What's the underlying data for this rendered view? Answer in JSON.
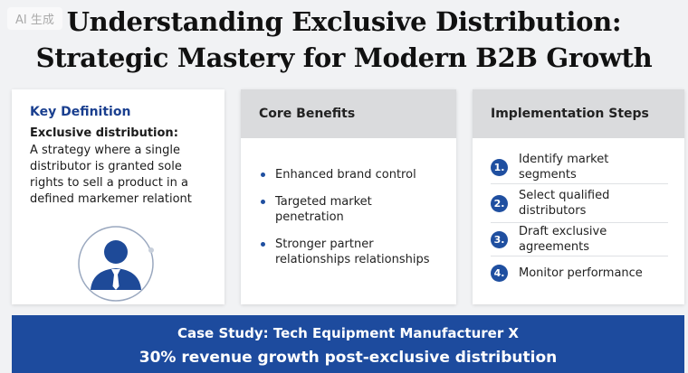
{
  "watermark": "AI 生成",
  "title": {
    "line1": "Understanding Exclusive Distribution:",
    "line2": "Strategic Mastery for Modern B2B Growth"
  },
  "definition_card": {
    "heading": "Key Definition",
    "term": "Exclusive distribution:",
    "text": "A strategy where a single distributor is granted sole rights to sell a product in a defined markemer relationt",
    "icon": "person-icon"
  },
  "benefits_card": {
    "heading": "Core Benefits",
    "items": [
      "Enhanced brand control",
      "Targeted market penetration",
      "Stronger partner relationships relationships"
    ]
  },
  "steps_card": {
    "heading": "Implementation Steps",
    "steps": [
      {
        "num": "1.",
        "label": "Identify market segments"
      },
      {
        "num": "2.",
        "label": "Select qualified distributors"
      },
      {
        "num": "3.",
        "label": "Draft exclusive agreements"
      },
      {
        "num": "4.",
        "label": "Monitor performance"
      }
    ]
  },
  "banner": {
    "line1": "Case Study: Tech Equipment Manufacturer X",
    "line2": "30% revenue growth post-exclusive distribution"
  },
  "colors": {
    "accent": "#1f4fa0",
    "banner": "#1d4b9e",
    "header_gray": "#dadbdd",
    "background": "#f1f2f4"
  }
}
